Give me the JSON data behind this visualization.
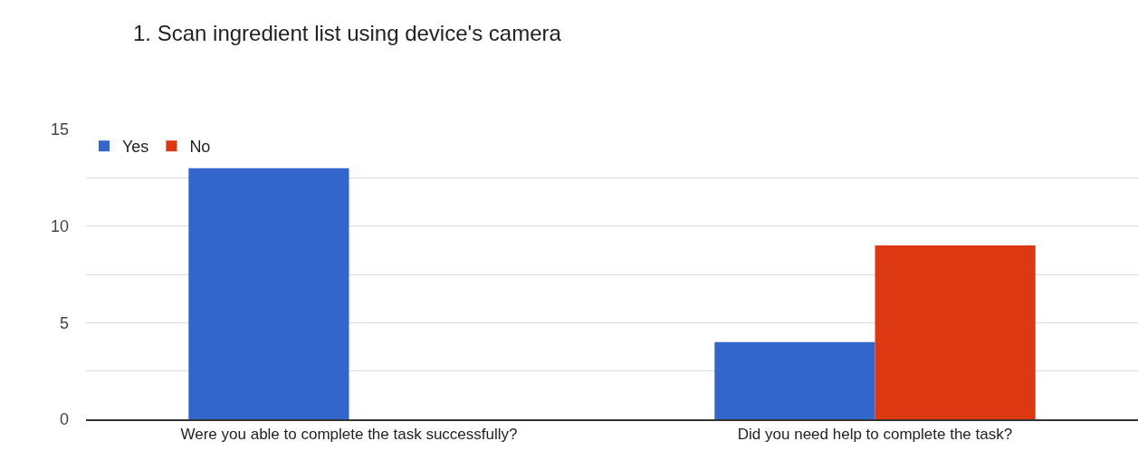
{
  "chart_data": {
    "type": "bar",
    "title": "1. Scan ingredient list using device's camera",
    "categories": [
      "Were you able to complete the task successfully?",
      "Did you need help to complete the task?"
    ],
    "series": [
      {
        "name": "Yes",
        "color": "#3366cc",
        "values": [
          13,
          4
        ]
      },
      {
        "name": "No",
        "color": "#dc3912",
        "values": [
          0,
          9
        ]
      }
    ],
    "ylim": [
      0,
      15
    ],
    "yticks": [
      0,
      {
        "value": 2.5,
        "label": null
      },
      5,
      {
        "value": 7.5,
        "label": null
      },
      10,
      {
        "value": 12.5,
        "label": null
      },
      15
    ],
    "grid": "y",
    "legend": "top left"
  }
}
